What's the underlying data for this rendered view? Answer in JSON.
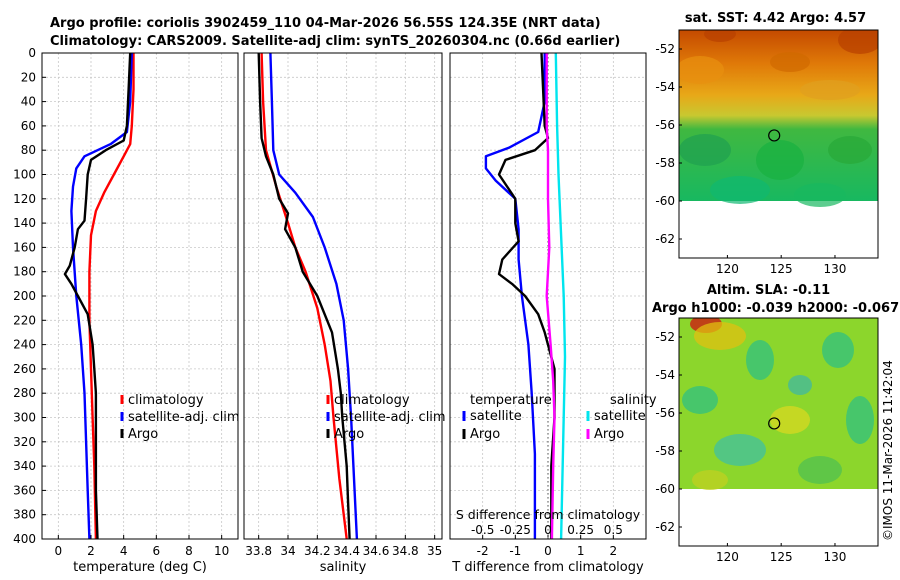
{
  "title": {
    "line1": "Argo profile: coriolis 3902459_110 04-Mar-2026 56.55S 124.35E (NRT data)",
    "line2": "Climatology: CARS2009. Satellite-adj clim: synTS_20260304.nc (0.66d earlier)"
  },
  "footer": "©IMOS 11-Mar-2026 11:42:04",
  "colors": {
    "red": "#ff0000",
    "blue": "#0000ff",
    "black": "#000000",
    "cyan": "#00e5ee",
    "magenta": "#ff00ff",
    "grid": "#c8c8c8"
  },
  "chart_data": [
    {
      "type": "line",
      "name": "temperature-profile",
      "xlabel": "temperature (deg C)",
      "xlim": [
        -1,
        11
      ],
      "ylim": [
        400,
        0
      ],
      "xticks": [
        "0",
        "2",
        "4",
        "6",
        "8",
        "10"
      ],
      "xtick_values": [
        0,
        2,
        4,
        6,
        8,
        10
      ],
      "yticks": [
        "0",
        "20",
        "40",
        "60",
        "80",
        "100",
        "120",
        "140",
        "160",
        "180",
        "200",
        "220",
        "240",
        "260",
        "280",
        "300",
        "320",
        "340",
        "360",
        "380",
        "400"
      ],
      "ytick_values": [
        0,
        20,
        40,
        60,
        80,
        100,
        120,
        140,
        160,
        180,
        200,
        220,
        240,
        260,
        280,
        300,
        320,
        340,
        360,
        380,
        400
      ],
      "legend": {
        "position": "center-right",
        "entries": [
          {
            "label": "climatology",
            "color": "red"
          },
          {
            "label": "satellite-adj. clim",
            "color": "blue"
          },
          {
            "label": "Argo",
            "color": "black"
          }
        ]
      },
      "series": [
        {
          "name": "climatology",
          "color": "red",
          "points": [
            [
              4.6,
              0
            ],
            [
              4.6,
              30
            ],
            [
              4.5,
              60
            ],
            [
              4.4,
              75
            ],
            [
              4.0,
              85
            ],
            [
              3.4,
              100
            ],
            [
              2.8,
              115
            ],
            [
              2.3,
              130
            ],
            [
              2.0,
              150
            ],
            [
              1.9,
              180
            ],
            [
              1.9,
              220
            ],
            [
              2.0,
              260
            ],
            [
              2.1,
              300
            ],
            [
              2.2,
              340
            ],
            [
              2.3,
              400
            ]
          ]
        },
        {
          "name": "satellite-adj. clim",
          "color": "blue",
          "points": [
            [
              4.5,
              0
            ],
            [
              4.4,
              40
            ],
            [
              4.2,
              65
            ],
            [
              3.2,
              75
            ],
            [
              1.6,
              85
            ],
            [
              1.1,
              95
            ],
            [
              0.9,
              110
            ],
            [
              0.8,
              130
            ],
            [
              0.9,
              160
            ],
            [
              1.1,
              200
            ],
            [
              1.4,
              240
            ],
            [
              1.6,
              280
            ],
            [
              1.7,
              320
            ],
            [
              1.8,
              360
            ],
            [
              1.9,
              400
            ]
          ]
        },
        {
          "name": "Argo",
          "color": "black",
          "points": [
            [
              4.4,
              0
            ],
            [
              4.3,
              30
            ],
            [
              4.2,
              60
            ],
            [
              4.0,
              72
            ],
            [
              2.9,
              80
            ],
            [
              2.0,
              88
            ],
            [
              1.8,
              100
            ],
            [
              1.7,
              120
            ],
            [
              1.6,
              138
            ],
            [
              1.2,
              145
            ],
            [
              1.0,
              160
            ],
            [
              0.7,
              175
            ],
            [
              0.4,
              182
            ],
            [
              0.8,
              190
            ],
            [
              1.2,
              200
            ],
            [
              1.8,
              215
            ],
            [
              2.1,
              240
            ],
            [
              2.2,
              260
            ],
            [
              2.3,
              280
            ],
            [
              2.3,
              300
            ],
            [
              2.3,
              320
            ],
            [
              2.3,
              360
            ],
            [
              2.4,
              400
            ]
          ]
        }
      ]
    },
    {
      "type": "line",
      "name": "salinity-profile",
      "xlabel": "salinity",
      "xlim": [
        33.7,
        35.05
      ],
      "ylim": [
        400,
        0
      ],
      "xticks": [
        "33.8",
        "34",
        "34.2",
        "34.4",
        "34.6",
        "34.8",
        "35"
      ],
      "xtick_values": [
        33.8,
        34.0,
        34.2,
        34.4,
        34.6,
        34.8,
        35.0
      ],
      "legend": {
        "position": "center-right",
        "entries": [
          {
            "label": "climatology",
            "color": "red"
          },
          {
            "label": "satellite-adj. clim",
            "color": "blue"
          },
          {
            "label": "Argo",
            "color": "black"
          }
        ]
      },
      "series": [
        {
          "name": "climatology",
          "color": "red",
          "points": [
            [
              33.82,
              0
            ],
            [
              33.83,
              40
            ],
            [
              33.85,
              80
            ],
            [
              33.92,
              110
            ],
            [
              34.0,
              140
            ],
            [
              34.05,
              160
            ],
            [
              34.12,
              180
            ],
            [
              34.2,
              210
            ],
            [
              34.25,
              240
            ],
            [
              34.29,
              270
            ],
            [
              34.31,
              300
            ],
            [
              34.35,
              350
            ],
            [
              34.4,
              400
            ]
          ]
        },
        {
          "name": "satellite-adj. clim",
          "color": "blue",
          "points": [
            [
              33.88,
              0
            ],
            [
              33.89,
              40
            ],
            [
              33.9,
              80
            ],
            [
              33.94,
              100
            ],
            [
              34.05,
              115
            ],
            [
              34.17,
              135
            ],
            [
              34.25,
              160
            ],
            [
              34.33,
              190
            ],
            [
              34.38,
              220
            ],
            [
              34.41,
              260
            ],
            [
              34.43,
              300
            ],
            [
              34.45,
              350
            ],
            [
              34.47,
              400
            ]
          ]
        },
        {
          "name": "Argo",
          "color": "black",
          "points": [
            [
              33.8,
              0
            ],
            [
              33.81,
              40
            ],
            [
              33.82,
              70
            ],
            [
              33.85,
              85
            ],
            [
              33.9,
              100
            ],
            [
              33.94,
              120
            ],
            [
              34.0,
              132
            ],
            [
              33.98,
              145
            ],
            [
              34.05,
              160
            ],
            [
              34.1,
              180
            ],
            [
              34.2,
              200
            ],
            [
              34.3,
              230
            ],
            [
              34.34,
              260
            ],
            [
              34.36,
              280
            ],
            [
              34.37,
              300
            ],
            [
              34.4,
              340
            ],
            [
              34.41,
              370
            ],
            [
              34.42,
              400
            ]
          ]
        }
      ]
    },
    {
      "type": "line",
      "name": "difference-profile",
      "xlabel": "T difference from climatology",
      "xlabel2": "S difference from climatology",
      "xlim": [
        -3,
        3
      ],
      "ylim": [
        400,
        0
      ],
      "xticks": [
        "-2",
        "-1",
        "0",
        "1",
        "2"
      ],
      "xtick_values": [
        -2,
        -1,
        0,
        1,
        2
      ],
      "xticks2": [
        "-0.5",
        "-0.25",
        "0",
        "0.25",
        "0.5"
      ],
      "xtick2_values": [
        -0.5,
        -0.25,
        0,
        0.25,
        0.5
      ],
      "xlim2": [
        -0.75,
        0.75
      ],
      "legend": {
        "position": "center",
        "entries": [
          {
            "group": "temperature",
            "label": "satellite",
            "color": "blue"
          },
          {
            "group": "temperature",
            "label": "Argo",
            "color": "black"
          },
          {
            "group": "salinity",
            "label": "satellite",
            "color": "cyan"
          },
          {
            "group": "salinity",
            "label": "Argo",
            "color": "magenta"
          }
        ],
        "group_titles": [
          "temperature",
          "salinity"
        ]
      },
      "series": [
        {
          "name": "T satellite",
          "color": "blue",
          "axis": "T",
          "points": [
            [
              -0.1,
              0
            ],
            [
              -0.1,
              40
            ],
            [
              -0.3,
              65
            ],
            [
              -1.2,
              78
            ],
            [
              -1.9,
              85
            ],
            [
              -1.9,
              95
            ],
            [
              -1.6,
              105
            ],
            [
              -1.0,
              120
            ],
            [
              -0.9,
              145
            ],
            [
              -0.9,
              170
            ],
            [
              -0.8,
              200
            ],
            [
              -0.6,
              240
            ],
            [
              -0.5,
              280
            ],
            [
              -0.4,
              330
            ],
            [
              -0.4,
              400
            ]
          ]
        },
        {
          "name": "T Argo",
          "color": "black",
          "axis": "T",
          "points": [
            [
              -0.2,
              0
            ],
            [
              -0.1,
              60
            ],
            [
              0,
              70
            ],
            [
              -0.4,
              80
            ],
            [
              -1.3,
              88
            ],
            [
              -1.5,
              100
            ],
            [
              -1.0,
              120
            ],
            [
              -1.0,
              140
            ],
            [
              -0.9,
              155
            ],
            [
              -1.4,
              170
            ],
            [
              -1.5,
              182
            ],
            [
              -1.1,
              190
            ],
            [
              -0.7,
              200
            ],
            [
              -0.3,
              215
            ],
            [
              -0.1,
              230
            ],
            [
              0.2,
              260
            ],
            [
              0.2,
              300
            ],
            [
              0.1,
              340
            ],
            [
              0.1,
              400
            ]
          ]
        },
        {
          "name": "S satellite",
          "color": "cyan",
          "axis": "S",
          "points": [
            [
              0.06,
              0
            ],
            [
              0.07,
              60
            ],
            [
              0.08,
              100
            ],
            [
              0.1,
              150
            ],
            [
              0.12,
              200
            ],
            [
              0.13,
              250
            ],
            [
              0.12,
              300
            ],
            [
              0.11,
              350
            ],
            [
              0.1,
              400
            ]
          ]
        },
        {
          "name": "S Argo",
          "color": "magenta",
          "axis": "S",
          "points": [
            [
              -0.01,
              0
            ],
            [
              -0.01,
              60
            ],
            [
              0.0,
              80
            ],
            [
              0.0,
              120
            ],
            [
              0.01,
              160
            ],
            [
              -0.01,
              200
            ],
            [
              0.02,
              240
            ],
            [
              0.04,
              270
            ],
            [
              0.05,
              300
            ],
            [
              0.04,
              340
            ],
            [
              0.03,
              400
            ]
          ]
        }
      ]
    },
    {
      "type": "heatmap",
      "name": "sst-map",
      "title": "sat. SST: 4.42 Argo: 4.57",
      "xticks": [
        "120",
        "125",
        "130"
      ],
      "xtick_values": [
        120,
        125,
        130
      ],
      "xlim": [
        115.5,
        134
      ],
      "yticks": [
        "-52",
        "-54",
        "-56",
        "-58",
        "-60",
        "-62"
      ],
      "ytick_values": [
        -52,
        -54,
        -56,
        -58,
        -60,
        -62
      ],
      "ylim": [
        -63,
        -51
      ],
      "marker": {
        "lon": 124.35,
        "lat": -56.55
      },
      "missing_below_lat": -60
    },
    {
      "type": "heatmap",
      "name": "sla-map",
      "title": "Altim. SLA: -0.11",
      "subtitle": "Argo h1000: -0.039 h2000: -0.067",
      "xticks": [
        "120",
        "125",
        "130"
      ],
      "xtick_values": [
        120,
        125,
        130
      ],
      "xlim": [
        115.5,
        134
      ],
      "yticks": [
        "-52",
        "-54",
        "-56",
        "-58",
        "-60",
        "-62"
      ],
      "ytick_values": [
        -52,
        -54,
        -56,
        -58,
        -60,
        -62
      ],
      "ylim": [
        -63,
        -51
      ],
      "marker": {
        "lon": 124.35,
        "lat": -56.55
      },
      "missing_below_lat": -60
    }
  ]
}
